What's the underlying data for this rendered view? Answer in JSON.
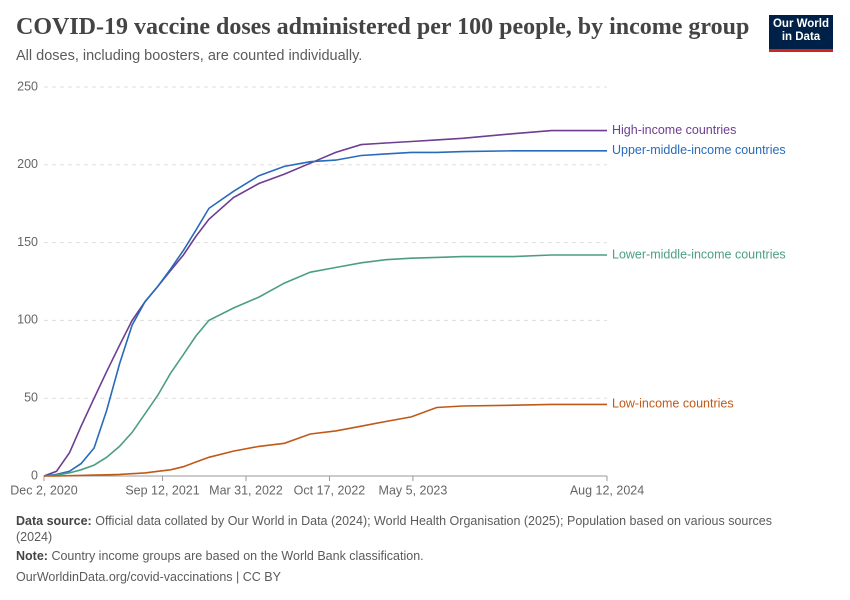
{
  "header": {
    "title": "COVID-19 vaccine doses administered per 100 people, by income group",
    "subtitle": "All doses, including boosters, are counted individually.",
    "logo": [
      "Our World",
      "in Data"
    ]
  },
  "chart_data": {
    "type": "line",
    "x": [
      "2020-12-02",
      "2021-01-01",
      "2021-02-01",
      "2021-03-01",
      "2021-04-01",
      "2021-05-01",
      "2021-06-01",
      "2021-07-01",
      "2021-08-01",
      "2021-09-01",
      "2021-10-01",
      "2021-11-01",
      "2021-12-01",
      "2022-01-01",
      "2022-03-01",
      "2022-05-01",
      "2022-07-01",
      "2022-09-01",
      "2022-11-01",
      "2023-01-01",
      "2023-03-01",
      "2023-05-01",
      "2023-07-01",
      "2023-09-01",
      "2024-01-01",
      "2024-04-01",
      "2024-08-12"
    ],
    "series": [
      {
        "name": "High-income countries",
        "color": "#6d3e91",
        "values": [
          0,
          3,
          15,
          32,
          50,
          67,
          84,
          100,
          112,
          122,
          132,
          142,
          154,
          165,
          179,
          188,
          194,
          201,
          208,
          213,
          214,
          215,
          216,
          217,
          220,
          222,
          222
        ]
      },
      {
        "name": "Upper-middle-income countries",
        "color": "#286bbb",
        "values": [
          0,
          1,
          3,
          8,
          18,
          42,
          72,
          97,
          112,
          122,
          133,
          145,
          158,
          172,
          183,
          193,
          199,
          202,
          203,
          206,
          207,
          208,
          208,
          208.5,
          209,
          209,
          209
        ]
      },
      {
        "name": "Lower-middle-income countries",
        "color": "#4c9e82",
        "values": [
          0,
          0.5,
          2,
          4,
          7,
          12,
          19,
          28,
          40,
          52,
          66,
          78,
          90,
          100,
          108,
          115,
          124,
          131,
          134,
          137,
          139,
          140,
          140.5,
          141,
          141,
          142,
          142
        ]
      },
      {
        "name": "Low-income countries",
        "color": "#c05917",
        "values": [
          0,
          0,
          0.2,
          0.4,
          0.6,
          0.8,
          1,
          1.5,
          2,
          3,
          4,
          6,
          9,
          12,
          16,
          19,
          21,
          27,
          29,
          32,
          35,
          38,
          44,
          45,
          45.5,
          46,
          46
        ]
      }
    ],
    "xlim": [
      "2020-12-02",
      "2024-08-12"
    ],
    "xticks": [
      {
        "value": "2020-12-02",
        "label": "Dec 2, 2020"
      },
      {
        "value": "2021-09-12",
        "label": "Sep 12, 2021"
      },
      {
        "value": "2022-03-31",
        "label": "Mar 31, 2022"
      },
      {
        "value": "2022-10-17",
        "label": "Oct 17, 2022"
      },
      {
        "value": "2023-05-05",
        "label": "May 5, 2023"
      },
      {
        "value": "2024-08-12",
        "label": "Aug 12, 2024"
      }
    ],
    "ylim": [
      0,
      250
    ],
    "yticks": [
      0,
      50,
      100,
      150,
      200,
      250
    ],
    "grid": true
  },
  "footer": {
    "source_label": "Data source:",
    "source": "Official data collated by Our World in Data (2024); World Health Organisation (2025); Population based on various sources (2024)",
    "note_label": "Note:",
    "note": "Country income groups are based on the World Bank classification.",
    "url": "OurWorldinData.org/covid-vaccinations | CC BY"
  }
}
